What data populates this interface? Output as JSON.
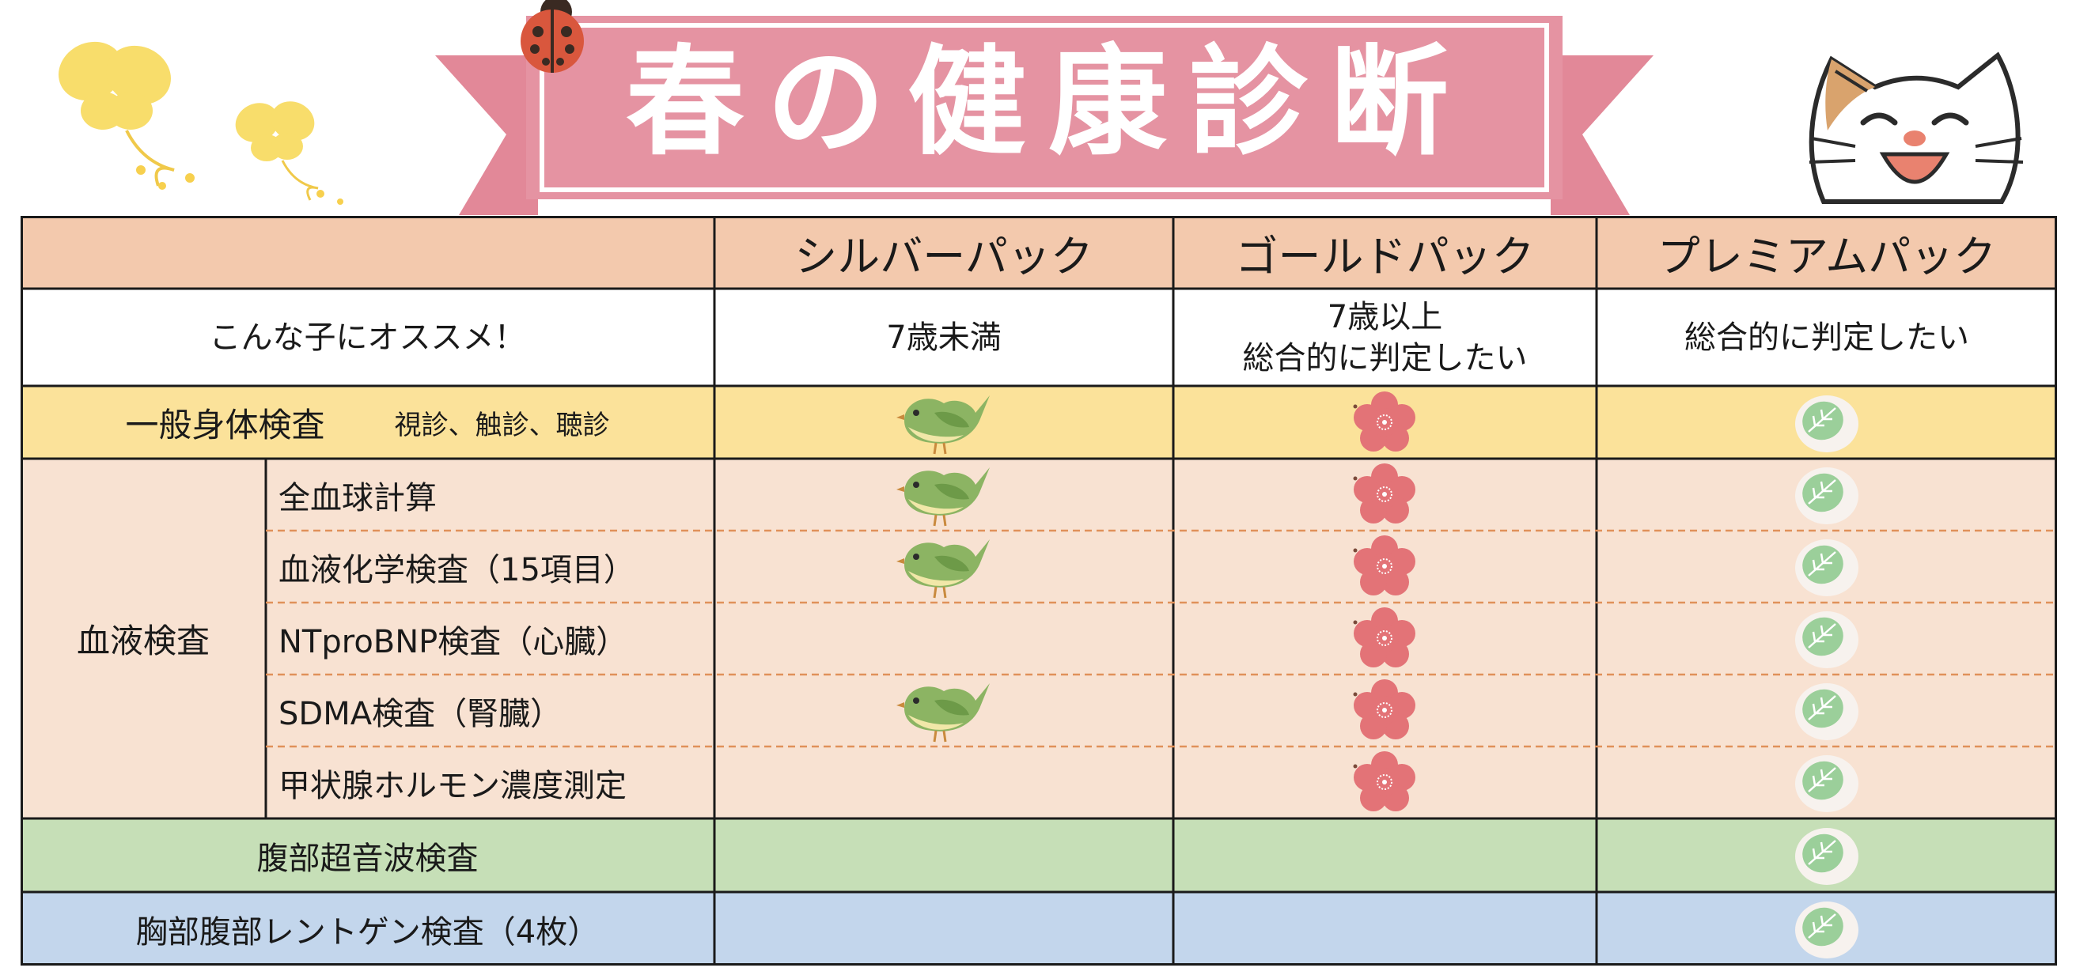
{
  "title": "春の健康診断",
  "header": {
    "columns": [
      "",
      "シルバーパック",
      "ゴールドパック",
      "プレミアムパック"
    ]
  },
  "recommend": {
    "label": "こんな子にオススメ！",
    "silver": "7歳未満",
    "gold_line1": "7歳以上",
    "gold_line2": "総合的に判定したい",
    "premium": "総合的に判定したい"
  },
  "general": {
    "label": "一般身体検査",
    "sub": "視診、触診、聴診",
    "marks": {
      "silver": true,
      "gold": true,
      "premium": true
    }
  },
  "blood": {
    "group_label": "血液検査",
    "items": [
      {
        "label": "全血球計算",
        "silver": true,
        "gold": true,
        "premium": true
      },
      {
        "label": "血液化学検査（15項目）",
        "silver": true,
        "gold": true,
        "premium": true
      },
      {
        "label": "NTproBNP検査（心臓）",
        "silver": false,
        "gold": true,
        "premium": true
      },
      {
        "label": "SDMA検査（腎臓）",
        "silver": true,
        "gold": true,
        "premium": true
      },
      {
        "label": "甲状腺ホルモン濃度測定",
        "silver": false,
        "gold": true,
        "premium": true
      }
    ]
  },
  "abdominal": {
    "label": "腹部超音波検査",
    "silver": false,
    "gold": false,
    "premium": true
  },
  "xray": {
    "label": "胸部腹部レントゲン検査（4枚）",
    "silver": false,
    "gold": false,
    "premium": true
  },
  "icons": {
    "silver_mark": "bird-icon",
    "gold_mark": "plum-flower-icon",
    "premium_mark": "sakura-mochi-icon",
    "decorations": [
      "butterfly-icon",
      "ladybug-icon",
      "cat-icon"
    ]
  },
  "colors": {
    "banner": "#e593a2",
    "header_row": "#f3c9ad",
    "general_row": "#fbe29a",
    "blood_rows": "#f8e2d2",
    "abdominal_row": "#c6dfb7",
    "xray_row": "#c3d6ec",
    "dashed_divider": "#e0915a"
  }
}
